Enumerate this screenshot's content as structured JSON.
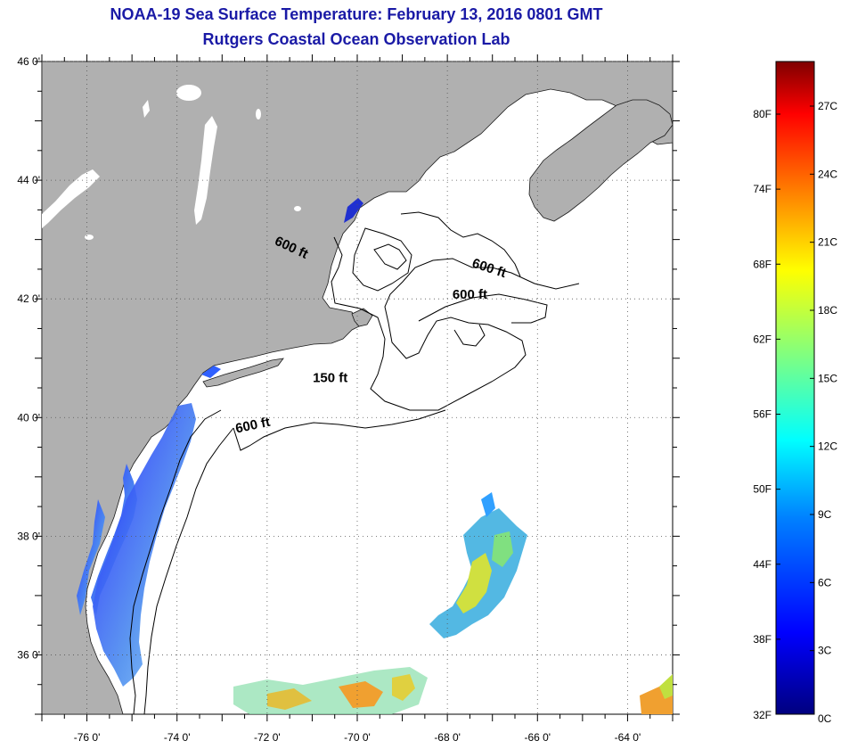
{
  "header": {
    "title": "NOAA-19 Sea Surface Temperature:  February 13, 2016 0801 GMT",
    "subtitle": "Rutgers Coastal Ocean Observation Lab"
  },
  "map": {
    "lon_range": [
      -77,
      -63
    ],
    "lat_range": [
      35,
      46
    ],
    "grid": true,
    "lon_ticks": [
      {
        "value": -76,
        "label": "-76 0'"
      },
      {
        "value": -74,
        "label": "-74 0'"
      },
      {
        "value": -72,
        "label": "-72 0'"
      },
      {
        "value": -70,
        "label": "-70 0'"
      },
      {
        "value": -68,
        "label": "-68 0'"
      },
      {
        "value": -66,
        "label": "-66 0'"
      },
      {
        "value": -64,
        "label": "-64 0'"
      }
    ],
    "lat_ticks": [
      {
        "value": 46,
        "label": "46 0'"
      },
      {
        "value": 44,
        "label": "44 0'"
      },
      {
        "value": 42,
        "label": "42 0'"
      },
      {
        "value": 40,
        "label": "40 0'"
      },
      {
        "value": 38,
        "label": "38 0'"
      },
      {
        "value": 36,
        "label": "36 0'"
      }
    ],
    "contour_labels": [
      {
        "text": "600 ft",
        "lon": -71.5,
        "lat": 42.8
      },
      {
        "text": "600 ft",
        "lon": -67.1,
        "lat": 42.45
      },
      {
        "text": "600 ft",
        "lon": -67.5,
        "lat": 42.0
      },
      {
        "text": "150 ft",
        "lon": -70.6,
        "lat": 40.6
      },
      {
        "text": "600 ft",
        "lon": -72.3,
        "lat": 39.8
      }
    ],
    "land_color": "#b0b0b0",
    "ocean_color": "#ffffff"
  },
  "colorbar": {
    "f_labels": [
      "80F",
      "74F",
      "68F",
      "62F",
      "56F",
      "50F",
      "44F",
      "38F",
      "32F"
    ],
    "c_labels": [
      "27C",
      "24C",
      "21C",
      "18C",
      "15C",
      "12C",
      "9C",
      "6C",
      "3C",
      "0C"
    ],
    "colors": [
      "#00007f",
      "#0000ff",
      "#0080ff",
      "#00ffff",
      "#80ff80",
      "#ffff00",
      "#ff8000",
      "#ff0000",
      "#7f0000"
    ]
  }
}
